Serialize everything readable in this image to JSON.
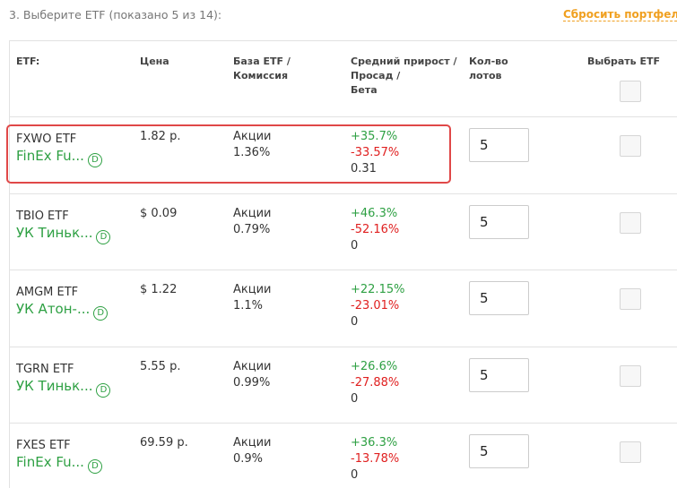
{
  "header": {
    "title": "3. Выберите ETF (показано 5 из 14):",
    "reset": "Сбросить портфель"
  },
  "table": {
    "columns": [
      [
        "ETF:"
      ],
      [
        "Цена"
      ],
      [
        "База ETF /",
        "Комиссия"
      ],
      [
        "Средний прирост /",
        "Просад /",
        "Бета"
      ],
      [
        "Кол-во",
        "лотов"
      ],
      [
        "Выбрать ETF"
      ]
    ],
    "rows": [
      {
        "ticker": "FXWO ETF",
        "provider": "FinEx Fu...",
        "badge": "D",
        "price": "1.82 р.",
        "base": "Акции",
        "commission": "1.36%",
        "growth": "+35.7%",
        "drawdown": "-33.57%",
        "beta": "0.31",
        "lots": "5",
        "highlighted": true
      },
      {
        "ticker": "TBIO ETF",
        "provider": "УК Тиньк...",
        "badge": "D",
        "price": "$ 0.09",
        "base": "Акции",
        "commission": "0.79%",
        "growth": "+46.3%",
        "drawdown": "-52.16%",
        "beta": "0",
        "lots": "5",
        "highlighted": false
      },
      {
        "ticker": "AMGM ETF",
        "provider": "УК Атон-...",
        "badge": "D",
        "price": "$ 1.22",
        "base": "Акции",
        "commission": "1.1%",
        "growth": "+22.15%",
        "drawdown": "-23.01%",
        "beta": "0",
        "lots": "5",
        "highlighted": false
      },
      {
        "ticker": "TGRN ETF",
        "provider": "УК Тиньк...",
        "badge": "D",
        "price": "5.55 р.",
        "base": "Акции",
        "commission": "0.99%",
        "growth": "+26.6%",
        "drawdown": "-27.88%",
        "beta": "0",
        "lots": "5",
        "highlighted": false
      },
      {
        "ticker": "FXES ETF",
        "provider": "FinEx Fu...",
        "badge": "D",
        "price": "69.59 р.",
        "base": "Акции",
        "commission": "0.9%",
        "growth": "+36.3%",
        "drawdown": "-13.78%",
        "beta": "0",
        "lots": "5",
        "highlighted": false
      }
    ]
  }
}
